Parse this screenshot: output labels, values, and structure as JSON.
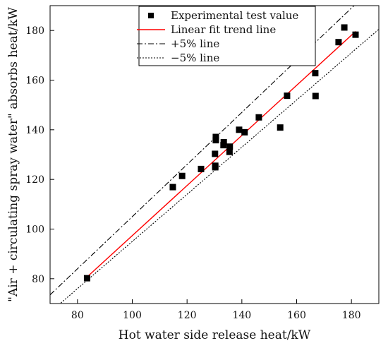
{
  "chart_data": {
    "type": "scatter",
    "title": "",
    "xlabel": "Hot water side release heat/kW",
    "ylabel": "\"Air + circulating spray water\" absorbs heat/kW",
    "xlim": [
      70,
      190
    ],
    "ylim": [
      70,
      190
    ],
    "x_ticks": [
      80,
      100,
      120,
      140,
      160,
      180
    ],
    "y_ticks": [
      80,
      100,
      120,
      140,
      160,
      180
    ],
    "grid": false,
    "legend_position": "top",
    "series": [
      {
        "name": "Experimental test value",
        "kind": "scatter",
        "marker": "square",
        "color": "#000000",
        "points": [
          [
            83.5,
            80.2
          ],
          [
            114.8,
            116.9
          ],
          [
            118.2,
            121.4
          ],
          [
            125.1,
            124.2
          ],
          [
            130.3,
            124.9
          ],
          [
            130.3,
            125.5
          ],
          [
            130.2,
            130.3
          ],
          [
            130.5,
            135.8
          ],
          [
            130.5,
            137.1
          ],
          [
            133.3,
            133.8
          ],
          [
            133.4,
            135.0
          ],
          [
            135.5,
            131.1
          ],
          [
            135.6,
            133.2
          ],
          [
            139.0,
            140.0
          ],
          [
            141.0,
            139.0
          ],
          [
            146.2,
            145.0
          ],
          [
            154.0,
            140.9
          ],
          [
            156.5,
            153.7
          ],
          [
            166.8,
            162.8
          ],
          [
            166.9,
            153.6
          ],
          [
            175.3,
            175.3
          ],
          [
            177.4,
            181.2
          ],
          [
            181.5,
            178.3
          ]
        ]
      },
      {
        "name": "Linear fit trend line",
        "kind": "line",
        "color": "#ff0000",
        "dash": "solid",
        "points": [
          [
            83.5,
            80.7
          ],
          [
            181.5,
            179.6
          ]
        ]
      },
      {
        "name": "+5% line",
        "kind": "line",
        "color": "#000000",
        "dash": "dashdot",
        "points": [
          [
            70,
            73.5
          ],
          [
            190,
            199.5
          ]
        ]
      },
      {
        "name": "−5% line",
        "kind": "line",
        "color": "#000000",
        "dash": "dotted",
        "points": [
          [
            70,
            66.5
          ],
          [
            190,
            180.5
          ]
        ]
      }
    ]
  }
}
